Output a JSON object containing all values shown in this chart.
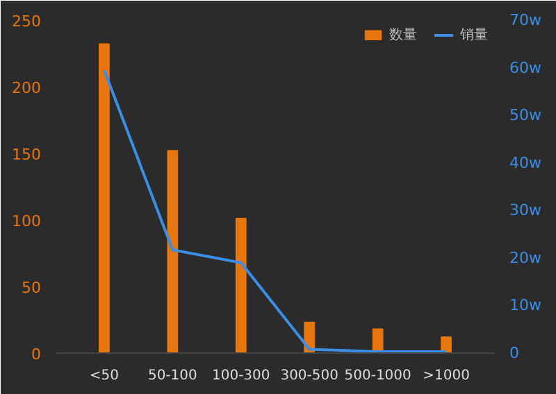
{
  "chart_data": {
    "type": "bar",
    "categories": [
      "<50",
      "50-100",
      "100-300",
      "300-500",
      "500-1000",
      ">1000"
    ],
    "series": [
      {
        "name": "数量",
        "color": "#e8760f",
        "values": [
          232,
          152,
          101,
          23,
          18,
          12
        ]
      },
      {
        "name": "销量",
        "type": "line",
        "axis": "y2",
        "color": "#3a8ee6",
        "values": [
          59.5,
          21.7,
          19,
          0.8,
          0.3,
          0.3
        ]
      }
    ],
    "ylim": [
      0,
      250
    ],
    "yticks": [
      0,
      50,
      100,
      150,
      200,
      250
    ],
    "y2lim": [
      0,
      70
    ],
    "y2ticks": [
      {
        "value": 0,
        "label": "0"
      },
      {
        "value": 10,
        "label": "10w"
      },
      {
        "value": 20,
        "label": "20w"
      },
      {
        "value": 30,
        "label": "30w"
      },
      {
        "value": 40,
        "label": "40w"
      },
      {
        "value": 50,
        "label": "50w"
      },
      {
        "value": 60,
        "label": "60w"
      },
      {
        "value": 70,
        "label": "70w"
      }
    ],
    "legend": "top right",
    "grid": false,
    "marker": "none",
    "line_style": "solid"
  }
}
